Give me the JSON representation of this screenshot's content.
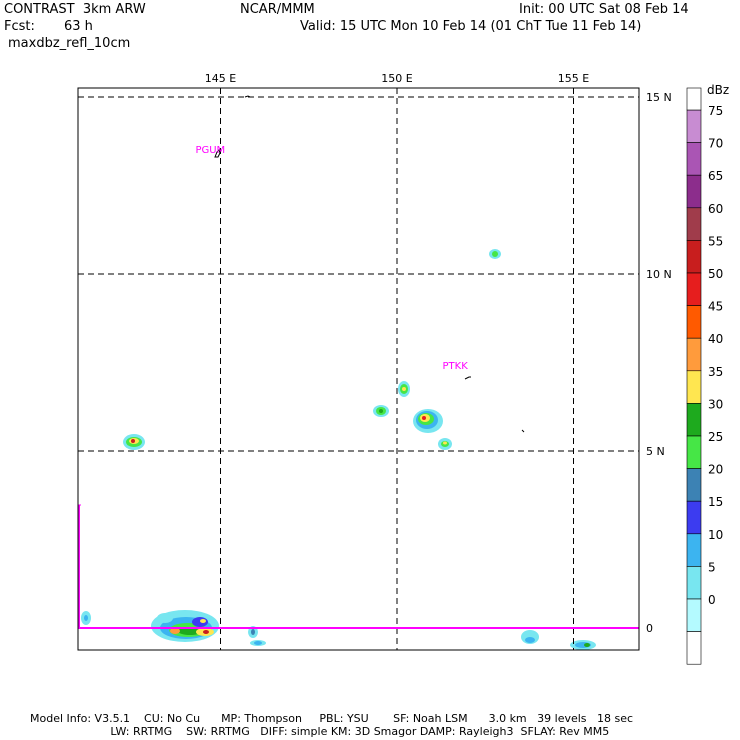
{
  "header": {
    "model": "CONTRAST  3km ARW",
    "org": "NCAR/MMM",
    "init": "Init: 00 UTC Sat 08 Feb 14",
    "fcst_label": "Fcst:",
    "fcst_value": "63 h",
    "valid": "Valid: 15 UTC Mon 10 Feb 14 (01 ChT Tue 11 Feb 14)",
    "field": "maxdbz_refl_10cm"
  },
  "map": {
    "lon_ticks": [
      {
        "label": "145 E",
        "lon": 145
      },
      {
        "label": "150 E",
        "lon": 150
      },
      {
        "label": "155 E",
        "lon": 155
      }
    ],
    "lat_ticks": [
      {
        "label": "15 N",
        "lat": 15
      },
      {
        "label": "10 N",
        "lat": 10
      },
      {
        "label": "5 N",
        "lat": 5
      },
      {
        "label": "0",
        "lat": 0
      }
    ],
    "stations": [
      {
        "label": "PGUM",
        "lon": 144.8,
        "lat": 13.5
      },
      {
        "label": "PTKK",
        "lon": 151.8,
        "lat": 7.4
      }
    ],
    "line_color": "#ff00ff"
  },
  "colorbar": {
    "unit": "dBz",
    "levels": [
      {
        "label": "75",
        "color": "#c88cd2"
      },
      {
        "label": "70",
        "color": "#aa55b4"
      },
      {
        "label": "65",
        "color": "#8c2d8c"
      },
      {
        "label": "60",
        "color": "#a03c4b"
      },
      {
        "label": "55",
        "color": "#c81e1e"
      },
      {
        "label": "50",
        "color": "#e61e1e"
      },
      {
        "label": "45",
        "color": "#ff5a00"
      },
      {
        "label": "40",
        "color": "#ff9b3c"
      },
      {
        "label": "35",
        "color": "#ffe650"
      },
      {
        "label": "30",
        "color": "#1eaa1e"
      },
      {
        "label": "25",
        "color": "#46e646"
      },
      {
        "label": "20",
        "color": "#3c82b4"
      },
      {
        "label": "15",
        "color": "#3c3cf0"
      },
      {
        "label": "10",
        "color": "#3cb4f0"
      },
      {
        "label": "5",
        "color": "#78e6f0"
      },
      {
        "label": "0",
        "color": "#b4faff"
      },
      {
        "label": "",
        "color": "#ffffff"
      }
    ]
  },
  "footer": {
    "line1": "Model Info: V3.5.1    CU: No Cu      MP: Thompson     PBL: YSU       SF: Noah LSM      3.0 km   39 levels   18 sec",
    "line2": "                       LW: RRTMG    SW: RRTMG   DIFF: simple KM: 3D Smagor DAMP: Rayleigh3  SFLAY: Rev MM5"
  }
}
